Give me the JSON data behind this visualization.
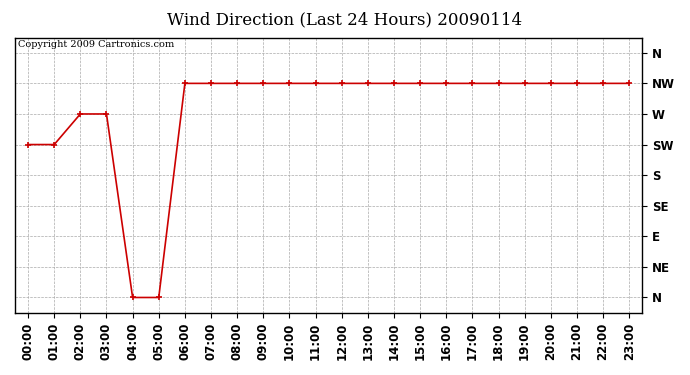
{
  "title": "Wind Direction (Last 24 Hours) 20090114",
  "copyright": "Copyright 2009 Cartronics.com",
  "background_color": "#ffffff",
  "plot_bg_color": "#ffffff",
  "line_color": "#cc0000",
  "marker": "+",
  "marker_size": 5,
  "marker_color": "#cc0000",
  "x_labels": [
    "00:00",
    "01:00",
    "02:00",
    "03:00",
    "04:00",
    "05:00",
    "06:00",
    "07:00",
    "08:00",
    "09:00",
    "10:00",
    "11:00",
    "12:00",
    "13:00",
    "14:00",
    "15:00",
    "16:00",
    "17:00",
    "18:00",
    "19:00",
    "20:00",
    "21:00",
    "22:00",
    "23:00"
  ],
  "y_labels_right": [
    "N",
    "NW",
    "W",
    "SW",
    "S",
    "SE",
    "E",
    "NE",
    "N"
  ],
  "y_tick_positions": [
    8,
    7,
    6,
    5,
    4,
    3,
    2,
    1,
    0
  ],
  "data_y": [
    5,
    5,
    6,
    6,
    0,
    0,
    7,
    7,
    7,
    7,
    7,
    7,
    7,
    7,
    7,
    7,
    7,
    7,
    7,
    7,
    7,
    7,
    7,
    7
  ],
  "grid_color": "#aaaaaa",
  "title_fontsize": 12,
  "copyright_fontsize": 7,
  "tick_fontsize": 8.5,
  "border_color": "#000000"
}
